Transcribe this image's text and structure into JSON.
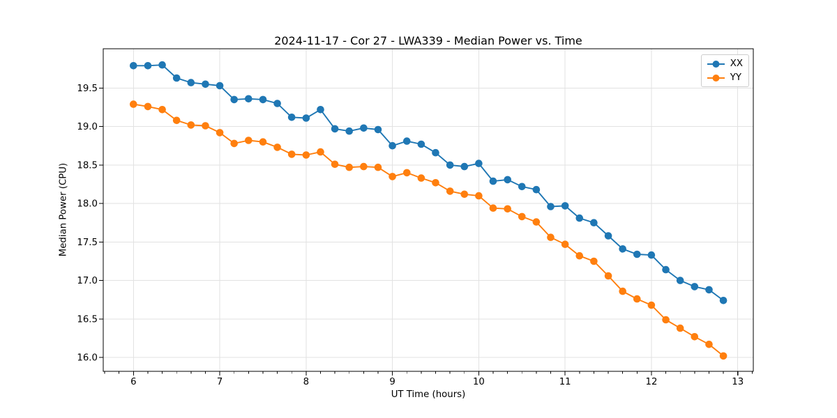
{
  "chart_data": {
    "type": "line",
    "title": "2024-11-17 - Cor 27 - LWA339 - Median Power vs. Time",
    "xlabel": "UT Time (hours)",
    "ylabel": "Median Power (CPU)",
    "xlim": [
      5.65,
      13.18
    ],
    "ylim": [
      15.82,
      20.01
    ],
    "grid": "major-both-axes",
    "grid_color": "#e2e2e2",
    "legend_position": "upper right",
    "xticks": {
      "values": [
        6,
        7,
        8,
        9,
        10,
        11,
        12,
        13
      ],
      "labels": [
        "6",
        "7",
        "8",
        "9",
        "10",
        "11",
        "12",
        "13"
      ]
    },
    "yticks": {
      "values": [
        16.0,
        16.5,
        17.0,
        17.5,
        18.0,
        18.5,
        19.0,
        19.5
      ],
      "labels": [
        "16.0",
        "16.5",
        "17.0",
        "17.5",
        "18.0",
        "18.5",
        "19.0",
        "19.5"
      ]
    },
    "x_minor_tick_step": 0.166667,
    "x": [
      6.0,
      6.1667,
      6.3333,
      6.5,
      6.6667,
      6.8333,
      7.0,
      7.1667,
      7.3333,
      7.5,
      7.6667,
      7.8333,
      8.0,
      8.1667,
      8.3333,
      8.5,
      8.6667,
      8.8333,
      9.0,
      9.1667,
      9.3333,
      9.5,
      9.6667,
      9.8333,
      10.0,
      10.1667,
      10.3333,
      10.5,
      10.6667,
      10.8333,
      11.0,
      11.1667,
      11.3333,
      11.5,
      11.6667,
      11.8333,
      12.0,
      12.1667,
      12.3333,
      12.5,
      12.6667,
      12.8333
    ],
    "series": [
      {
        "name": "XX",
        "color": "#1f77b4",
        "marker": "circle",
        "values": [
          19.79,
          19.79,
          19.8,
          19.63,
          19.57,
          19.55,
          19.53,
          19.35,
          19.36,
          19.35,
          19.3,
          19.12,
          19.11,
          19.22,
          18.97,
          18.94,
          18.98,
          18.96,
          18.75,
          18.81,
          18.77,
          18.66,
          18.5,
          18.48,
          18.52,
          18.29,
          18.31,
          18.22,
          18.18,
          17.96,
          17.97,
          17.81,
          17.75,
          17.58,
          17.41,
          17.34,
          17.33,
          17.14,
          17.0,
          16.92,
          16.88,
          16.74
        ]
      },
      {
        "name": "YY",
        "color": "#ff7f0e",
        "marker": "circle",
        "values": [
          19.29,
          19.26,
          19.22,
          19.08,
          19.02,
          19.01,
          18.92,
          18.78,
          18.82,
          18.8,
          18.73,
          18.64,
          18.63,
          18.67,
          18.51,
          18.47,
          18.48,
          18.47,
          18.35,
          18.4,
          18.33,
          18.27,
          18.16,
          18.12,
          18.1,
          17.94,
          17.93,
          17.83,
          17.76,
          17.56,
          17.47,
          17.32,
          17.25,
          17.06,
          16.86,
          16.76,
          16.68,
          16.49,
          16.38,
          16.27,
          16.17,
          16.02
        ]
      }
    ]
  }
}
